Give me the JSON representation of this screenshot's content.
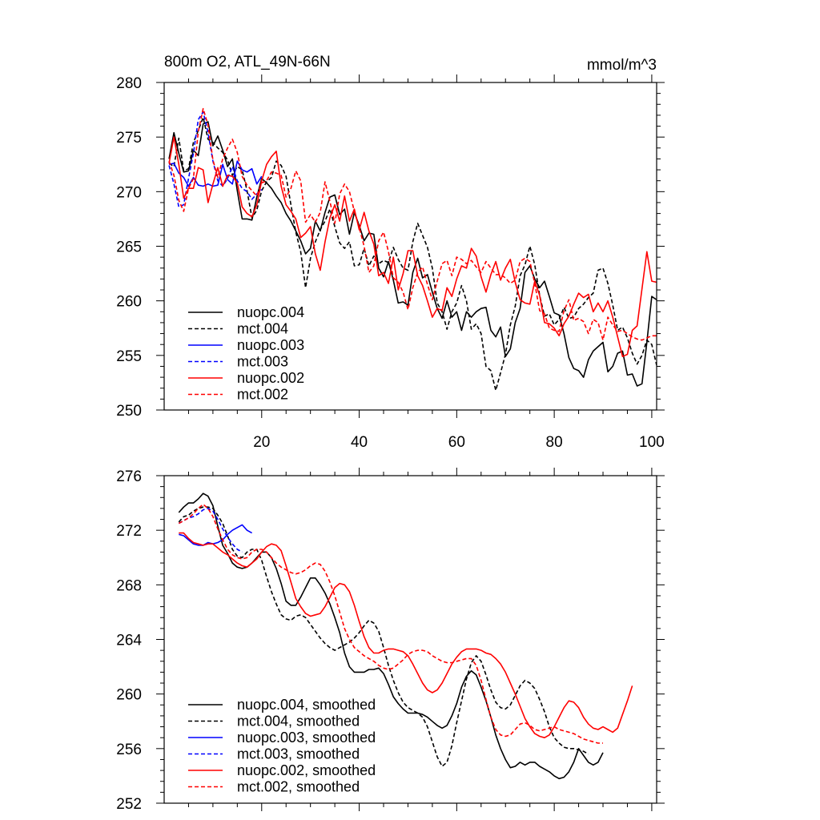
{
  "title_left": "800m O2, ATL_49N-66N",
  "title_right": "mmol/m^3",
  "chart_data": [
    {
      "type": "line",
      "xlim": [
        0,
        101
      ],
      "ylim": [
        250,
        280
      ],
      "yticks": [
        250,
        255,
        260,
        265,
        270,
        275,
        280
      ],
      "xticks": [
        20,
        40,
        60,
        80,
        100
      ],
      "show_xtick_labels": true,
      "legend_position": "bottom-left",
      "series": [
        {
          "name": "nuopc.004",
          "color": "#000000",
          "dash": false,
          "start": 1,
          "values": [
            273.0,
            275.4,
            273.5,
            271.8,
            271.9,
            273.8,
            273.3,
            276.2,
            276.4,
            274.2,
            275.1,
            273.8,
            272.3,
            273.0,
            270.1,
            267.5,
            267.5,
            267.4,
            269.5,
            271.2,
            270.8,
            270.3,
            269.6,
            269.0,
            268.0,
            267.3,
            266.4,
            265.5,
            264.3,
            264.8,
            267.3,
            266.4,
            268.1,
            269.5,
            269.7,
            267.9,
            268.4,
            266.1,
            268.1,
            266.9,
            265.5,
            266.2,
            266.1,
            263.0,
            262.2,
            263.6,
            261.9,
            259.8,
            259.9,
            259.6,
            262.6,
            263.9,
            262.1,
            262.4,
            260.8,
            259.3,
            258.4,
            260.0,
            258.5,
            259.0,
            257.3,
            259.0,
            258.5,
            259.0,
            259.3,
            259.4,
            257.3,
            256.7,
            257.6,
            254.9,
            255.6,
            258.0,
            259.3,
            262.6,
            263.2,
            262.0,
            261.2,
            261.8,
            260.4,
            258.9,
            258.7,
            257.0,
            254.8,
            253.8,
            253.6,
            253.0,
            254.6,
            255.4,
            255.8,
            256.2,
            253.5,
            254.0,
            255.2,
            255.4,
            253.2,
            253.3,
            252.2,
            252.4,
            256.2,
            260.4,
            260.1
          ]
        },
        {
          "name": "mct.004",
          "color": "#000000",
          "dash": true,
          "start": 1,
          "values": [
            272.6,
            272.3,
            274.9,
            271.9,
            272.1,
            274.5,
            275.6,
            276.8,
            274.8,
            274.5,
            274.0,
            273.6,
            272.9,
            271.5,
            272.3,
            272.0,
            270.1,
            267.6,
            268.3,
            270.1,
            270.9,
            271.3,
            272.8,
            272.4,
            271.4,
            268.8,
            266.3,
            264.5,
            261.2,
            263.9,
            265.4,
            266.5,
            267.3,
            268.4,
            266.8,
            265.3,
            264.8,
            265.4,
            263.2,
            263.3,
            264.8,
            263.2,
            264.1,
            263.4,
            263.7,
            263.5,
            264.9,
            263.8,
            263.0,
            262.8,
            265.4,
            267.1,
            266.0,
            264.9,
            263.0,
            259.8,
            259.0,
            257.4,
            259.0,
            259.8,
            261.4,
            260.0,
            257.4,
            257.9,
            257.0,
            254.0,
            253.6,
            251.8,
            253.4,
            255.1,
            257.8,
            259.5,
            262.3,
            263.3,
            265.0,
            263.3,
            260.5,
            258.6,
            258.8,
            257.8,
            258.3,
            259.4,
            258.4,
            258.5,
            259.3,
            259.7,
            260.3,
            260.7,
            262.8,
            263.0,
            261.6,
            259.6,
            257.3,
            257.6,
            256.6,
            255.2,
            254.2,
            255.0,
            256.4,
            256.0,
            254.1
          ]
        },
        {
          "name": "nuopc.003",
          "color": "#0000ff",
          "dash": false,
          "start": 1,
          "values": [
            272.5,
            272.6,
            271.7,
            271.3,
            270.5,
            271.3,
            270.6,
            270.5,
            270.7,
            270.5,
            270.6,
            272.5,
            271.1,
            270.7,
            272.8,
            272.0,
            271.8,
            272.1,
            270.7,
            271.4
          ]
        },
        {
          "name": "mct.003",
          "color": "#0000ff",
          "dash": true,
          "start": 1,
          "values": [
            272.4,
            270.7,
            268.6,
            268.8,
            271.2,
            273.5,
            276.6,
            277.3,
            275.4,
            272.8,
            271.0,
            270.5,
            271.2,
            272.3,
            271.0,
            270.3,
            270.0,
            269.3,
            269.8,
            270.2
          ]
        },
        {
          "name": "nuopc.002",
          "color": "#ff0000",
          "dash": false,
          "start": 1,
          "values": [
            272.6,
            275.0,
            272.5,
            269.4,
            270.3,
            270.3,
            272.2,
            272.0,
            269.0,
            270.7,
            272.2,
            270.5,
            271.5,
            271.4,
            270.8,
            268.6,
            268.0,
            267.7,
            268.8,
            271.0,
            272.5,
            273.2,
            273.7,
            270.5,
            268.8,
            268.2,
            267.5,
            265.8,
            266.2,
            266.8,
            264.3,
            262.8,
            265.4,
            267.6,
            268.8,
            267.3,
            269.6,
            267.3,
            268.4,
            266.5,
            268.1,
            266.4,
            265.2,
            262.3,
            262.6,
            261.6,
            264.0,
            261.0,
            262.5,
            264.6,
            264.6,
            262.3,
            261.4,
            260.0,
            258.5,
            259.3,
            259.1,
            261.2,
            260.4,
            262.0,
            263.2,
            263.0,
            264.8,
            264.1,
            262.2,
            260.8,
            262.4,
            263.6,
            261.9,
            263.0,
            263.8,
            261.7,
            260.1,
            259.8,
            259.7,
            261.8,
            260.5,
            258.0,
            257.9,
            257.5,
            256.8,
            257.9,
            258.6,
            259.7,
            260.7,
            260.3,
            260.6,
            259.0,
            259.8,
            259.0,
            260.0,
            258.5,
            256.7,
            254.9,
            255.1,
            257.3,
            257.7,
            261.1,
            264.5,
            261.8,
            261.7
          ]
        },
        {
          "name": "mct.002",
          "color": "#ff0000",
          "dash": true,
          "start": 1,
          "values": [
            272.8,
            271.5,
            269.2,
            268.2,
            270.3,
            271.2,
            275.5,
            277.6,
            276.1,
            272.9,
            271.3,
            273.0,
            274.0,
            274.8,
            273.6,
            271.4,
            270.6,
            270.1,
            269.6,
            270.8,
            271.0,
            271.8,
            271.7,
            271.5,
            269.5,
            270.3,
            271.9,
            271.0,
            267.2,
            267.9,
            267.2,
            268.1,
            270.9,
            269.1,
            267.1,
            269.8,
            270.7,
            270.0,
            268.2,
            266.7,
            265.0,
            262.6,
            263.2,
            265.5,
            266.3,
            264.5,
            262.1,
            261.7,
            260.8,
            259.2,
            261.2,
            262.6,
            263.1,
            261.5,
            260.1,
            261.8,
            263.4,
            263.7,
            262.3,
            264.0,
            263.8,
            263.4,
            263.7,
            263.1,
            262.6,
            263.6,
            263.0,
            262.4,
            262.4,
            262.1,
            261.6,
            261.9,
            263.6,
            263.9,
            263.6,
            261.6,
            259.1,
            258.8,
            257.5,
            257.3,
            257.2,
            259.1,
            260.1,
            258.2,
            258.4,
            258.1,
            257.0,
            258.3,
            258.0,
            256.4,
            258.5,
            257.8,
            257.2,
            257.3,
            257.0,
            256.7,
            256.5,
            256.4,
            256.6,
            256.8,
            256.8
          ]
        }
      ]
    },
    {
      "type": "line",
      "xlim": [
        0,
        101
      ],
      "ylim": [
        252,
        276
      ],
      "yticks": [
        252,
        256,
        260,
        264,
        268,
        272,
        276
      ],
      "xticks": [
        20,
        40,
        60,
        80,
        100
      ],
      "show_xtick_labels": false,
      "legend_position": "bottom-left",
      "series": [
        {
          "name": "nuopc.004, smoothed",
          "color": "#000000",
          "dash": false,
          "start": 3,
          "values": [
            273.3,
            273.7,
            274.0,
            274.0,
            274.3,
            274.7,
            274.5,
            273.8,
            272.3,
            270.9,
            270.3,
            269.6,
            269.3,
            269.2,
            269.3,
            269.6,
            270.0,
            270.4,
            270.4,
            270.0,
            269.2,
            268.1,
            266.8,
            266.5,
            266.5,
            267.1,
            267.8,
            268.5,
            268.5,
            268.0,
            267.4,
            266.6,
            265.6,
            264.5,
            263.0,
            262.0,
            261.6,
            261.6,
            261.6,
            261.8,
            261.8,
            261.9,
            261.5,
            260.7,
            259.8,
            259.3,
            258.9,
            258.6,
            258.6,
            258.6,
            258.5,
            258.3,
            258.0,
            257.7,
            257.5,
            257.7,
            258.4,
            259.3,
            260.5,
            261.3,
            261.7,
            261.4,
            260.5,
            259.5,
            258.3,
            257.0,
            256.0,
            255.2,
            254.6,
            254.7,
            255.0,
            254.8,
            255.0,
            255.0,
            254.7,
            254.5,
            254.3,
            254.0,
            253.8,
            253.9,
            254.3,
            255.0,
            256.0,
            255.5,
            255.0,
            254.8,
            255.0,
            255.7
          ]
        },
        {
          "name": "mct.004, smoothed",
          "color": "#000000",
          "dash": true,
          "start": 3,
          "values": [
            272.6,
            273.0,
            273.1,
            273.4,
            273.6,
            273.7,
            273.7,
            273.6,
            273.1,
            272.5,
            271.6,
            270.6,
            270.1,
            270.0,
            270.4,
            270.6,
            270.6,
            269.8,
            268.6,
            267.5,
            266.6,
            265.8,
            265.5,
            265.4,
            265.7,
            265.8,
            265.6,
            265.1,
            264.6,
            264.1,
            263.7,
            263.4,
            263.2,
            263.4,
            263.6,
            263.8,
            264.1,
            264.5,
            265.0,
            265.4,
            265.2,
            264.6,
            263.4,
            262.1,
            261.0,
            260.1,
            259.4,
            259.0,
            258.8,
            258.6,
            258.3,
            257.6,
            256.5,
            255.4,
            254.7,
            255.0,
            256.2,
            257.9,
            259.5,
            261.1,
            262.3,
            262.8,
            262.4,
            261.4,
            260.3,
            259.4,
            259.0,
            258.9,
            259.2,
            259.9,
            260.6,
            261.0,
            260.8,
            260.4,
            259.6,
            258.7,
            257.6,
            256.8,
            256.4,
            256.1,
            256.0,
            256.0,
            255.9,
            255.8,
            255.6
          ]
        },
        {
          "name": "nuopc.003, smoothed",
          "color": "#0000ff",
          "dash": false,
          "start": 3,
          "values": [
            271.7,
            271.6,
            271.3,
            271.0,
            270.9,
            270.9,
            271.1,
            271.0,
            271.1,
            271.3,
            271.7,
            272.0,
            272.2,
            272.4,
            272.0,
            271.8
          ]
        },
        {
          "name": "mct.003, smoothed",
          "color": "#0000ff",
          "dash": true,
          "start": 3,
          "values": [
            272.5,
            272.7,
            272.9,
            273.0,
            273.2,
            273.5,
            273.6,
            273.4,
            272.8,
            272.1,
            271.5,
            271.0,
            270.6,
            270.4
          ]
        },
        {
          "name": "nuopc.002, smoothed",
          "color": "#ff0000",
          "dash": false,
          "start": 3,
          "values": [
            271.8,
            271.8,
            271.4,
            271.1,
            271.0,
            270.9,
            271.0,
            271.0,
            270.7,
            270.4,
            270.2,
            269.9,
            269.6,
            269.4,
            269.3,
            269.6,
            269.9,
            270.4,
            270.8,
            271.0,
            270.9,
            270.5,
            269.4,
            268.2,
            267.0,
            266.4,
            265.9,
            265.7,
            265.8,
            265.9,
            266.4,
            267.1,
            267.8,
            268.1,
            268.0,
            267.5,
            266.5,
            265.3,
            264.2,
            263.4,
            263.0,
            263.0,
            263.2,
            263.3,
            263.3,
            263.2,
            263.1,
            262.8,
            262.2,
            261.5,
            260.8,
            260.3,
            260.1,
            260.3,
            260.8,
            261.5,
            262.2,
            262.7,
            263.1,
            263.3,
            263.3,
            263.3,
            263.2,
            263.0,
            262.9,
            262.6,
            262.2,
            261.6,
            260.8,
            260.0,
            259.1,
            258.2,
            257.6,
            257.1,
            256.9,
            256.8,
            257.0,
            257.6,
            258.3,
            259.0,
            259.5,
            259.4,
            259.0,
            258.3,
            257.8,
            257.5,
            257.4,
            257.6,
            257.4,
            257.2,
            257.5,
            258.5,
            259.5,
            260.6
          ]
        },
        {
          "name": "mct.002, smoothed",
          "color": "#ff0000",
          "dash": true,
          "start": 3,
          "values": [
            272.5,
            272.7,
            272.9,
            273.2,
            273.6,
            273.9,
            273.6,
            273.0,
            272.1,
            271.3,
            270.6,
            270.2,
            270.0,
            269.9,
            270.0,
            270.4,
            270.6,
            270.6,
            270.4,
            270.0,
            269.6,
            269.3,
            269.1,
            268.9,
            268.8,
            268.9,
            269.1,
            269.4,
            269.6,
            269.5,
            269.0,
            268.2,
            267.2,
            266.0,
            264.8,
            264.0,
            263.4,
            263.1,
            262.8,
            262.6,
            262.4,
            262.1,
            261.9,
            261.8,
            261.9,
            262.2,
            262.5,
            262.9,
            263.1,
            263.2,
            263.2,
            263.1,
            262.8,
            262.6,
            262.4,
            262.3,
            262.3,
            262.4,
            262.5,
            262.6,
            262.6,
            262.1,
            261.0,
            259.6,
            258.3,
            257.4,
            257.0,
            256.9,
            257.0,
            257.4,
            257.8,
            257.9,
            257.7,
            257.4,
            257.3,
            257.4,
            257.5,
            257.6,
            257.4,
            257.3,
            257.2,
            257.1,
            256.9,
            256.7,
            256.6,
            256.5,
            256.4,
            256.4
          ]
        }
      ]
    }
  ]
}
